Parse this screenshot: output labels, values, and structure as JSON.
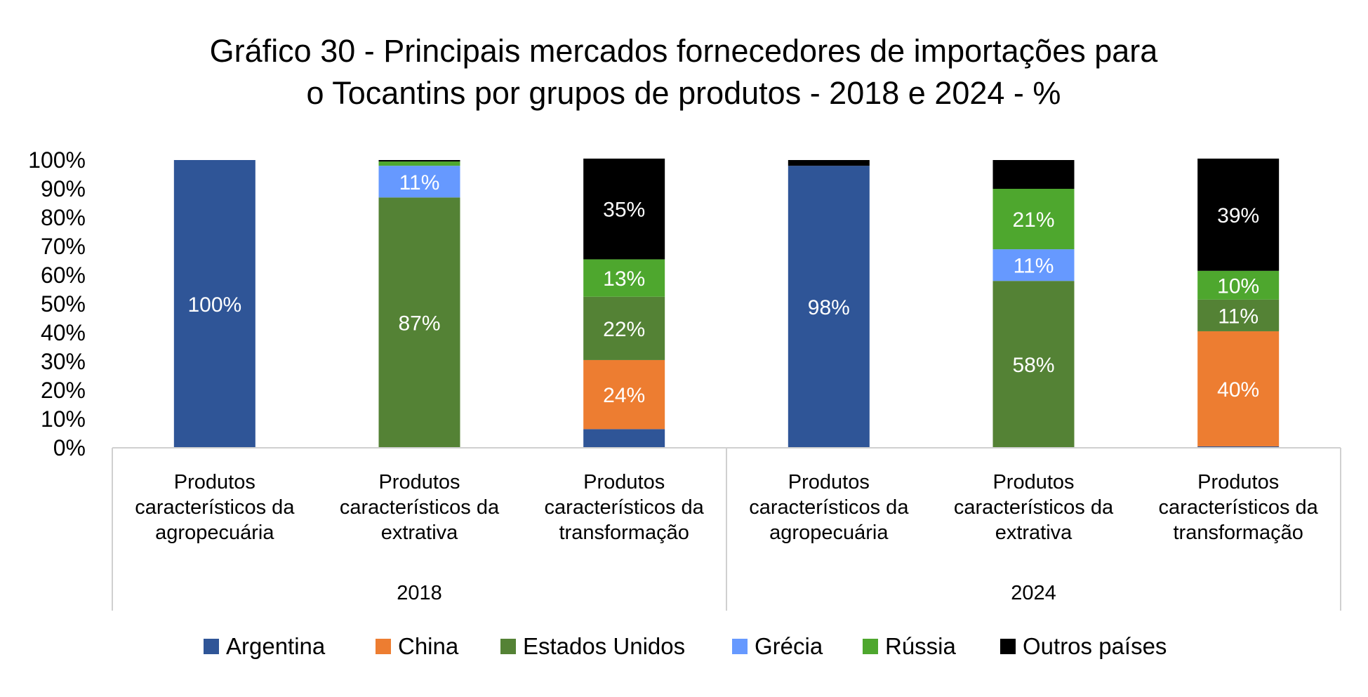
{
  "chart_data": {
    "type": "bar",
    "stacked": true,
    "percent": true,
    "title": "Gráfico 30 - Principais mercados fornecedores de importações para o Tocantins por grupos de produtos - 2018 e 2024 - %",
    "title_lines": [
      "Gráfico 30 - Principais mercados fornecedores de importações para",
      "o Tocantins por grupos de produtos - 2018 e 2024 - %"
    ],
    "ylim": [
      0,
      100
    ],
    "y_ticks": [
      "0%",
      "10%",
      "20%",
      "30%",
      "40%",
      "50%",
      "60%",
      "70%",
      "80%",
      "90%",
      "100%"
    ],
    "grid": false,
    "legend_position": "bottom",
    "groups": [
      {
        "label": "2018",
        "start": 0,
        "count": 3
      },
      {
        "label": "2024",
        "start": 3,
        "count": 3
      }
    ],
    "categories": [
      [
        "Produtos",
        "característicos da",
        "agropecuária"
      ],
      [
        "Produtos",
        "característicos da",
        "extrativa"
      ],
      [
        "Produtos",
        "característicos da",
        "transformação"
      ],
      [
        "Produtos",
        "característicos da",
        "agropecuária"
      ],
      [
        "Produtos",
        "característicos da",
        "extrativa"
      ],
      [
        "Produtos",
        "característicos da",
        "transformação"
      ]
    ],
    "series": [
      {
        "name": "Argentina",
        "color": "#2F5597",
        "label_color": "#ffffff",
        "values": [
          100,
          0,
          6.5,
          98,
          0,
          0.5
        ],
        "labels": [
          "100%",
          "",
          "",
          "98%",
          "",
          ""
        ]
      },
      {
        "name": "China",
        "color": "#ED7D31",
        "label_color": "#ffffff",
        "values": [
          0,
          0,
          24,
          0,
          0,
          40
        ],
        "labels": [
          "",
          "",
          "24%",
          "",
          "",
          "40%"
        ]
      },
      {
        "name": "Estados Unidos",
        "color": "#548235",
        "label_color": "#ffffff",
        "values": [
          0,
          87,
          22,
          0,
          58,
          11
        ],
        "labels": [
          "",
          "87%",
          "22%",
          "",
          "58%",
          "11%"
        ]
      },
      {
        "name": "Grécia",
        "color": "#6699FF",
        "label_color": "#ffffff",
        "values": [
          0,
          11,
          0,
          0,
          11,
          0
        ],
        "labels": [
          "",
          "11%",
          "",
          "",
          "11%",
          ""
        ]
      },
      {
        "name": "Rússia",
        "color": "#4EA72E",
        "label_color": "#ffffff",
        "values": [
          0,
          1.5,
          13,
          0,
          21,
          10
        ],
        "labels": [
          "",
          "",
          "13%",
          "",
          "21%",
          "10%"
        ]
      },
      {
        "name": "Outros países",
        "color": "#000000",
        "label_color": "#ffffff",
        "values": [
          0,
          0.5,
          35,
          2,
          10,
          39
        ],
        "labels": [
          "",
          "",
          "35%",
          "",
          "",
          "39%"
        ]
      }
    ]
  }
}
